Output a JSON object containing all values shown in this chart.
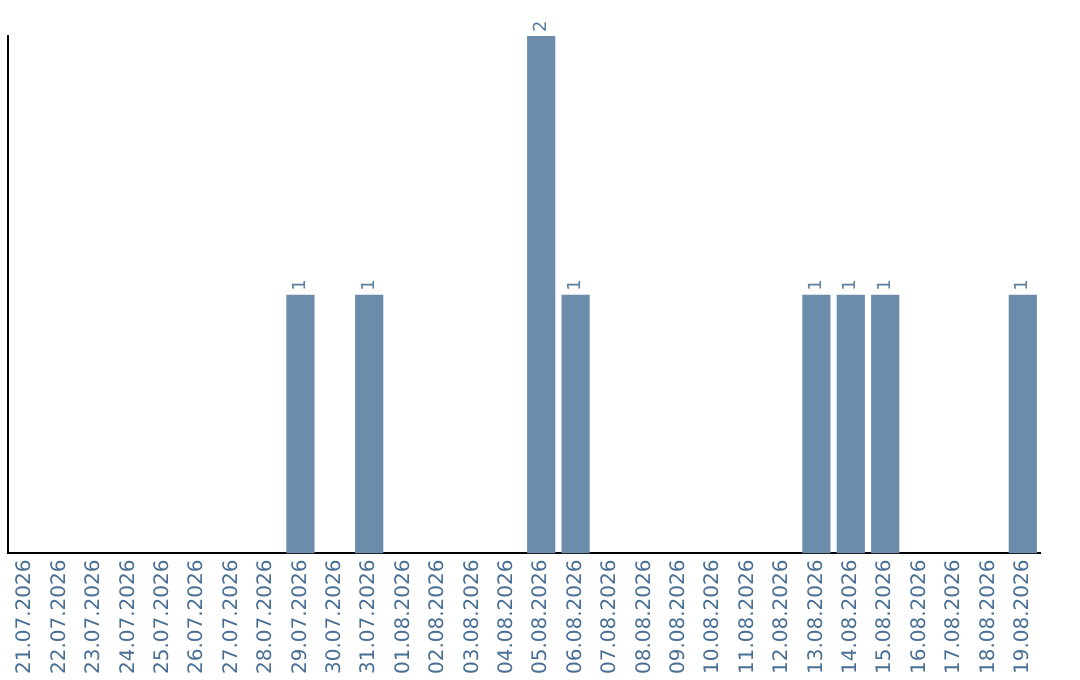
{
  "chart_data": {
    "type": "bar",
    "categories": [
      "21.07.2026",
      "22.07.2026",
      "23.07.2026",
      "24.07.2026",
      "25.07.2026",
      "26.07.2026",
      "27.07.2026",
      "28.07.2026",
      "29.07.2026",
      "30.07.2026",
      "31.07.2026",
      "01.08.2026",
      "02.08.2026",
      "03.08.2026",
      "04.08.2026",
      "05.08.2026",
      "06.08.2026",
      "07.08.2026",
      "08.08.2026",
      "09.08.2026",
      "10.08.2026",
      "11.08.2026",
      "12.08.2026",
      "13.08.2026",
      "14.08.2026",
      "15.08.2026",
      "16.08.2026",
      "17.08.2026",
      "18.08.2026",
      "19.08.2026"
    ],
    "values": [
      0,
      0,
      0,
      0,
      0,
      0,
      0,
      0,
      1,
      0,
      1,
      0,
      0,
      0,
      0,
      2,
      1,
      0,
      0,
      0,
      0,
      0,
      0,
      1,
      1,
      1,
      0,
      0,
      0,
      1
    ],
    "value_labels": [
      null,
      null,
      null,
      null,
      null,
      null,
      null,
      null,
      "1",
      null,
      "1",
      null,
      null,
      null,
      null,
      "2",
      "1",
      null,
      null,
      null,
      null,
      null,
      null,
      "1",
      "1",
      "1",
      null,
      null,
      null,
      "1"
    ],
    "color": "#6b8cab",
    "grid": false,
    "legend": false,
    "tick_labels": "x"
  }
}
